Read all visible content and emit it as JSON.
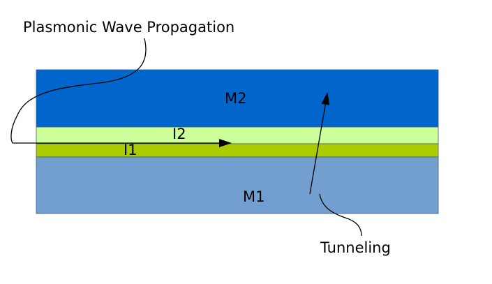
{
  "diagram": {
    "labels": {
      "propagation": "Plasmonic Wave Propagation",
      "m2": "M2",
      "i2": "I2",
      "i1": "I1",
      "m1": "M1",
      "tunneling": "Tunneling"
    },
    "colors": {
      "m2": "#0066cc",
      "i2": "#ccff99",
      "i1": "#aacc00",
      "m1": "#729fcf",
      "layer_stroke": "#3d5a80",
      "line": "#000000"
    }
  }
}
